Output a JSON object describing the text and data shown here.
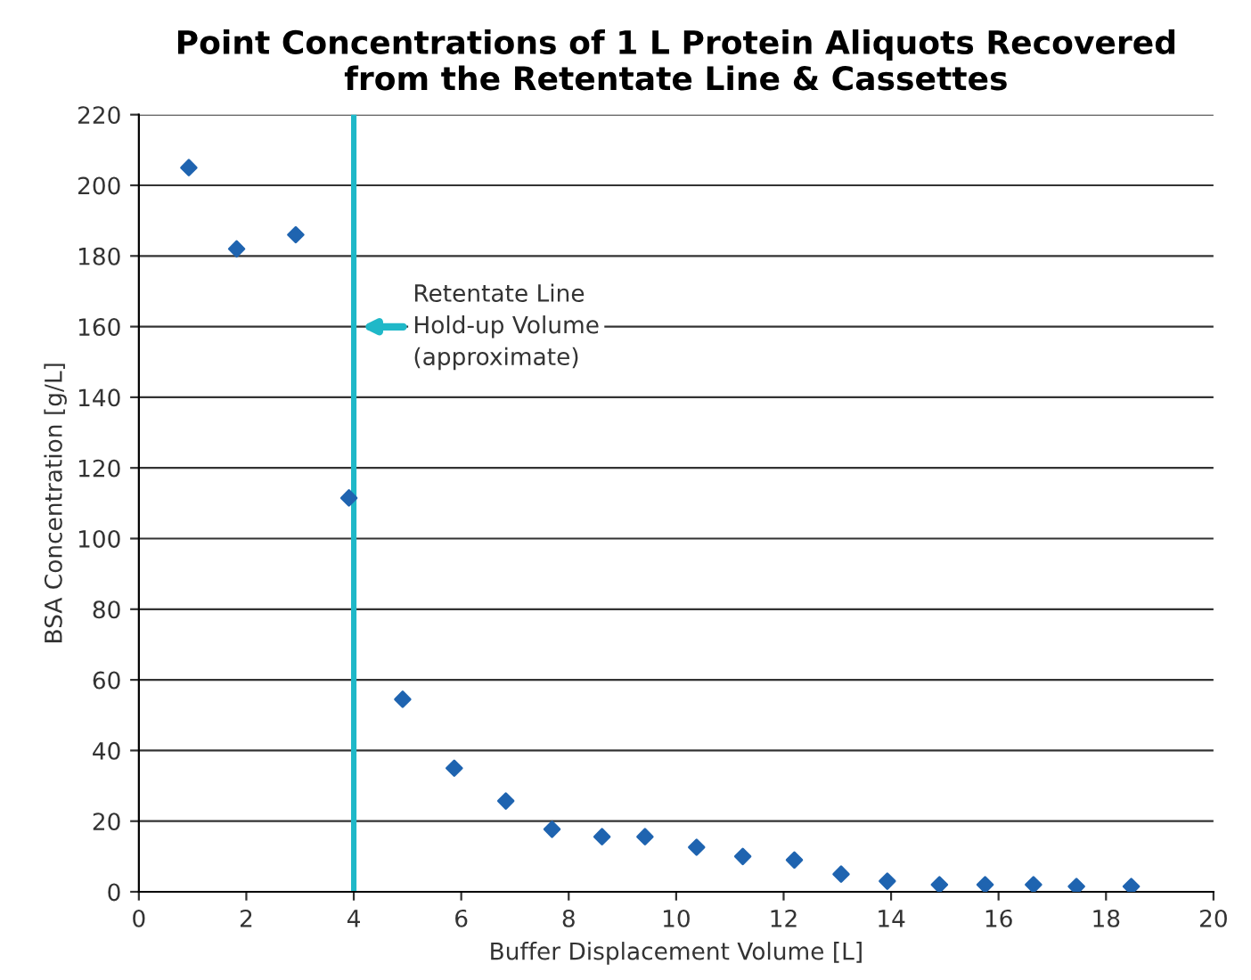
{
  "chart_data": {
    "type": "scatter",
    "title": "Point Concentrations of 1 L Protein Aliquots Recovered\nfrom the Retentate Line & Cassettes",
    "xlabel": "Buffer Displacement Volume [L]",
    "ylabel": "BSA Concentration [g/L]",
    "x": [
      0.93,
      1.82,
      2.92,
      3.91,
      4.91,
      5.87,
      6.83,
      7.69,
      8.62,
      9.42,
      10.38,
      11.24,
      12.2,
      13.07,
      13.93,
      14.9,
      15.75,
      16.65,
      17.45,
      18.47
    ],
    "series": [
      {
        "color": "#1f64b0",
        "values": [
          205,
          182,
          186,
          111.5,
          54.5,
          35,
          25.7,
          17.7,
          15.6,
          15.6,
          12.6,
          10,
          9,
          5,
          3,
          2,
          2,
          2,
          1.5,
          1.5
        ]
      }
    ],
    "marker": "diamond",
    "grid": "y",
    "legend": false,
    "xlim": [
      0,
      20
    ],
    "xticks": [
      0,
      2,
      4,
      6,
      8,
      10,
      12,
      14,
      16,
      18,
      20
    ],
    "ylim": [
      0,
      220
    ],
    "yticks": [
      0,
      20,
      40,
      60,
      80,
      100,
      120,
      140,
      160,
      180,
      200,
      220
    ],
    "ref_lines": [
      {
        "axis": "x",
        "value": 4,
        "label": "Retentate Line\nHold-up Volume\n(approximate)",
        "color": "#1fb8c8",
        "line_style": "solid"
      }
    ]
  }
}
